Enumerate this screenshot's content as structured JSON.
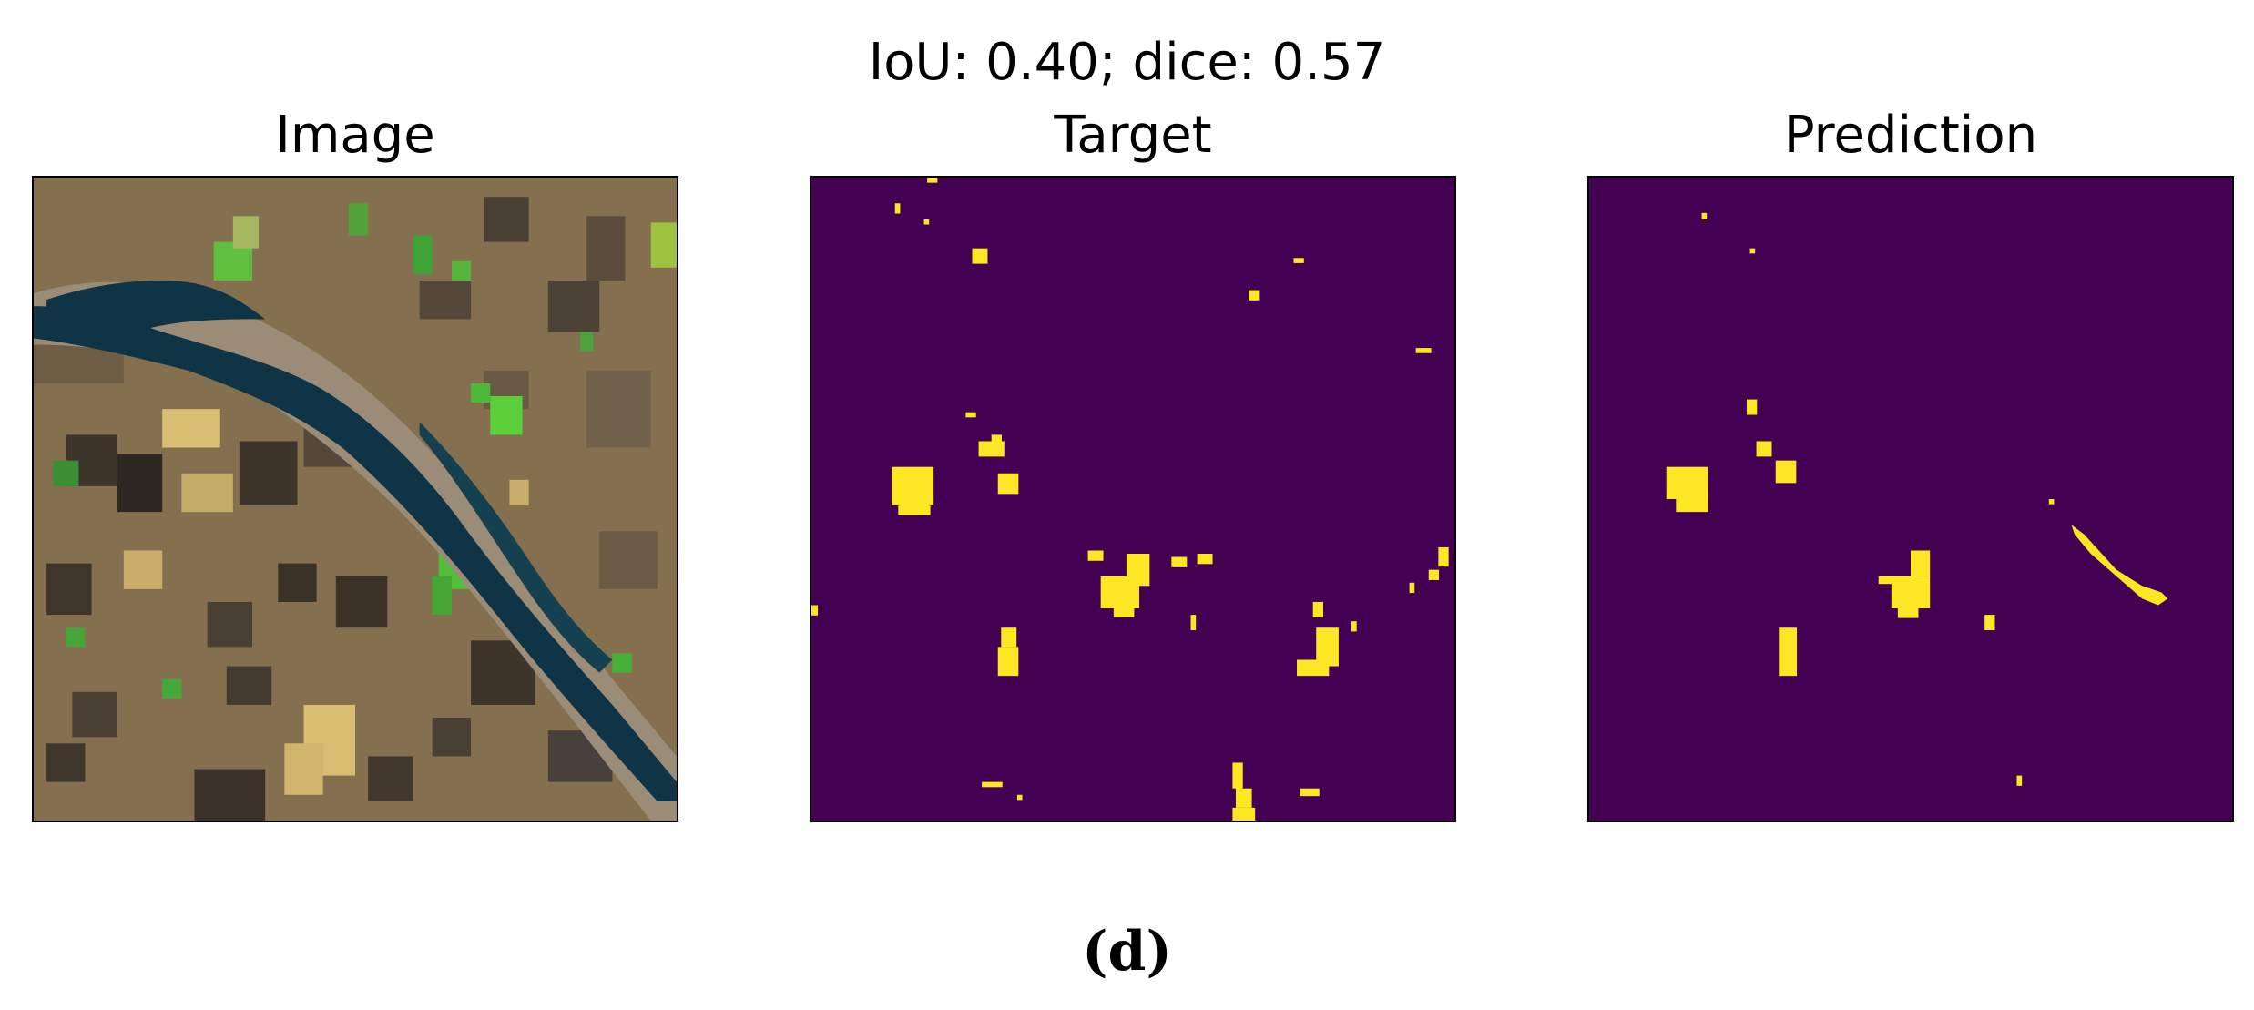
{
  "figure": {
    "suptitle": "IoU: 0.40; dice: 0.57",
    "caption": "(d)"
  },
  "panels": [
    {
      "title": "Image"
    },
    {
      "title": "Target"
    },
    {
      "title": "Prediction"
    }
  ],
  "colors": {
    "mask_background": "#440154",
    "mask_foreground": "#fde725",
    "river": "#0f3445",
    "soil": "#8b7250",
    "vegetation": "#4fbf3a",
    "bright_field": "#d8bd72",
    "dark_field": "#3d342a"
  }
}
